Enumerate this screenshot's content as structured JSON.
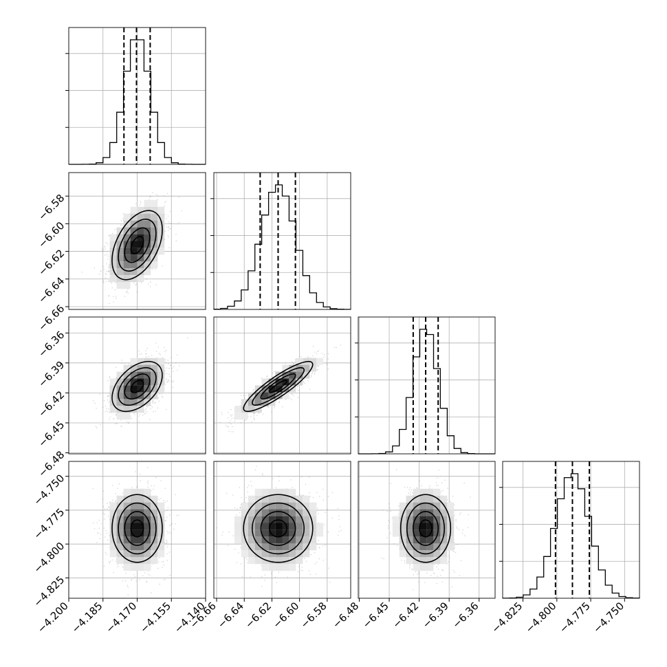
{
  "chart_data": {
    "type": "corner",
    "parameters": [
      {
        "ticks": [
          -4.2,
          -4.185,
          -4.17,
          -4.155,
          -4.14
        ],
        "tick_labels": [
          "−4.200",
          "−4.185",
          "−4.170",
          "−4.155",
          "−4.140"
        ],
        "range": [
          -4.2,
          -4.14
        ],
        "mean": -4.17,
        "sigma": 0.0055,
        "quantiles": [
          -4.1758,
          -4.1703,
          -4.1643
        ]
      },
      {
        "ticks": [
          -6.66,
          -6.64,
          -6.62,
          -6.6,
          -6.58
        ],
        "tick_labels": [
          "−6.66",
          "−6.64",
          "−6.62",
          "−6.60",
          "−6.58"
        ],
        "range": [
          -6.662,
          -6.563
        ],
        "mean": -6.6155,
        "sigma": 0.0125,
        "quantiles": [
          -6.6285,
          -6.6155,
          -6.603
        ]
      },
      {
        "ticks": [
          -6.48,
          -6.45,
          -6.42,
          -6.39,
          -6.36
        ],
        "tick_labels": [
          "−6.48",
          "−6.45",
          "−6.42",
          "−6.39",
          "−6.36"
        ],
        "range": [
          -6.481,
          -6.344
        ],
        "mean": -6.4135,
        "sigma": 0.0125,
        "quantiles": [
          -6.426,
          -6.4135,
          -6.401
        ]
      },
      {
        "ticks": [
          -4.825,
          -4.8,
          -4.775,
          -4.75
        ],
        "tick_labels": [
          "−4.825",
          "−4.800",
          "−4.775",
          "−4.750"
        ],
        "range": [
          -4.84,
          -4.739
        ],
        "mean": -4.7885,
        "sigma": 0.0125,
        "quantiles": [
          -4.801,
          -4.7885,
          -4.776
        ]
      }
    ],
    "correlations": [
      [
        1,
        0.45,
        0.45,
        0.0
      ],
      [
        0.45,
        1,
        0.88,
        0.0
      ],
      [
        0.45,
        0.88,
        1,
        0.0
      ],
      [
        0.0,
        0.0,
        0.0,
        1
      ]
    ],
    "histogram_bins": 20,
    "grid": true,
    "style": {
      "line_color": "#000000",
      "point_color": "#7f7f7f",
      "background": "#ffffff",
      "grid_color": "#b0b0b0"
    }
  }
}
